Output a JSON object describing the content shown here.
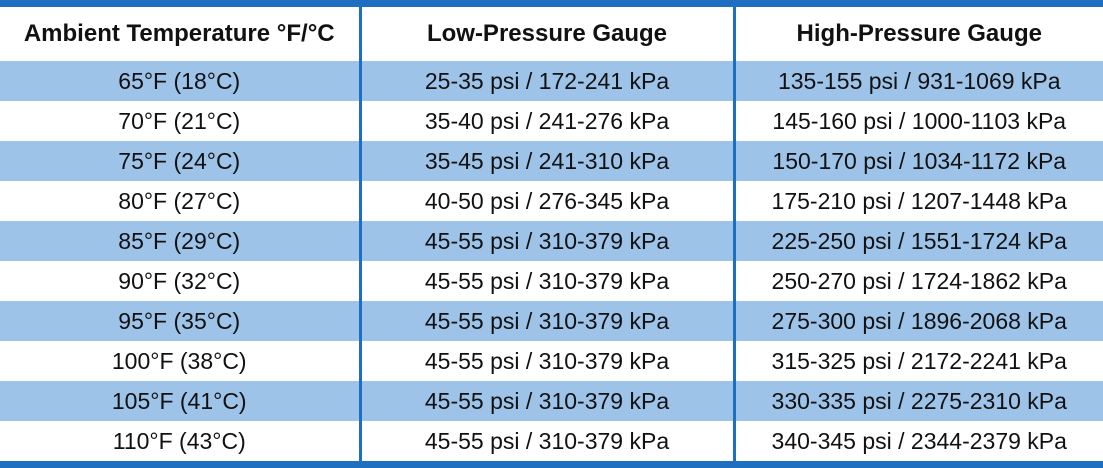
{
  "headers": {
    "ambient": "Ambient Temperature °F/°C",
    "low": "Low-Pressure Gauge",
    "high": "High-Pressure Gauge"
  },
  "colors": {
    "border": "#1f6fc0",
    "stripe": "#9ec3e8",
    "background": "#ffffff"
  },
  "rows": [
    {
      "ambient": "65°F (18°C)",
      "low": "25-35 psi / 172-241 kPa",
      "high": "135-155 psi / 931-1069 kPa"
    },
    {
      "ambient": "70°F (21°C)",
      "low": "35-40 psi / 241-276 kPa",
      "high": "145-160 psi / 1000-1103 kPa"
    },
    {
      "ambient": "75°F (24°C)",
      "low": "35-45 psi / 241-310 kPa",
      "high": "150-170 psi / 1034-1172 kPa"
    },
    {
      "ambient": "80°F (27°C)",
      "low": "40-50 psi / 276-345 kPa",
      "high": "175-210 psi / 1207-1448 kPa"
    },
    {
      "ambient": "85°F (29°C)",
      "low": "45-55 psi / 310-379 kPa",
      "high": "225-250 psi / 1551-1724 kPa"
    },
    {
      "ambient": "90°F (32°C)",
      "low": "45-55 psi / 310-379 kPa",
      "high": "250-270 psi / 1724-1862 kPa"
    },
    {
      "ambient": "95°F (35°C)",
      "low": "45-55 psi / 310-379 kPa",
      "high": "275-300 psi / 1896-2068 kPa"
    },
    {
      "ambient": "100°F (38°C)",
      "low": "45-55 psi / 310-379 kPa",
      "high": "315-325 psi / 2172-2241 kPa"
    },
    {
      "ambient": "105°F (41°C)",
      "low": "45-55 psi / 310-379 kPa",
      "high": "330-335 psi / 2275-2310 kPa"
    },
    {
      "ambient": "110°F (43°C)",
      "low": "45-55 psi / 310-379 kPa",
      "high": "340-345 psi / 2344-2379 kPa"
    }
  ]
}
